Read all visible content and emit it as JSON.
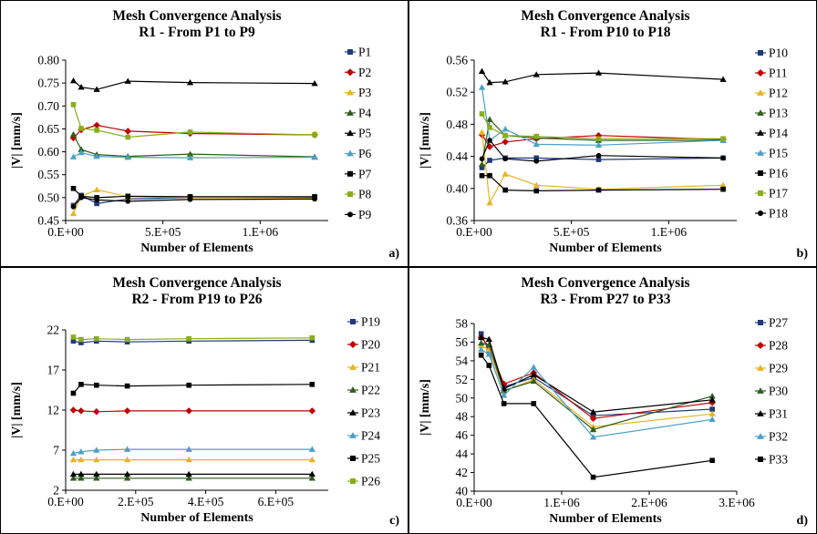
{
  "chart_data": [
    {
      "type": "line",
      "title": [
        "Mesh Convergence Analysis",
        "R1 - From P1 to P9"
      ],
      "xlabel": "Number of Elements",
      "ylabel": "|V| [mm/s]",
      "panel_label": "a)",
      "xlim": [
        0,
        1350000
      ],
      "ylim": [
        0.45,
        0.8
      ],
      "xticks": [
        0,
        500000,
        1000000
      ],
      "xtick_labels": [
        "0.E+00",
        "5.E+05",
        "1.E+06"
      ],
      "yticks": [
        0.45,
        0.5,
        0.55,
        0.6,
        0.65,
        0.7,
        0.75,
        0.8
      ],
      "ytick_labels": [
        "0.45",
        "0.50",
        "0.55",
        "0.60",
        "0.65",
        "0.70",
        "0.75",
        "0.80"
      ],
      "legend_position": "right",
      "x": [
        40000,
        80000,
        160000,
        320000,
        640000,
        1280000
      ],
      "series": [
        {
          "name": "P1",
          "color": "#1f3a78",
          "marker": "square",
          "values": [
            0.483,
            0.505,
            0.487,
            0.497,
            0.5,
            0.5
          ]
        },
        {
          "name": "P2",
          "color": "#c00000",
          "marker": "diamond",
          "values": [
            0.63,
            0.648,
            0.658,
            0.645,
            0.64,
            0.637
          ]
        },
        {
          "name": "P3",
          "color": "#e6b422",
          "marker": "triangle",
          "values": [
            0.465,
            0.503,
            0.517,
            0.502,
            0.5,
            0.499
          ]
        },
        {
          "name": "P4",
          "color": "#2e5c1e",
          "marker": "triangle",
          "values": [
            0.638,
            0.605,
            0.594,
            0.59,
            0.595,
            0.589
          ]
        },
        {
          "name": "P5",
          "color": "#000000",
          "marker": "triangle",
          "values": [
            0.755,
            0.741,
            0.736,
            0.754,
            0.751,
            0.749
          ]
        },
        {
          "name": "P6",
          "color": "#4aa0c8",
          "marker": "triangle",
          "values": [
            0.589,
            0.598,
            0.59,
            0.588,
            0.587,
            0.588
          ]
        },
        {
          "name": "P7",
          "color": "#000000",
          "marker": "square",
          "values": [
            0.52,
            0.503,
            0.5,
            0.503,
            0.502,
            0.502
          ]
        },
        {
          "name": "P8",
          "color": "#8aad1c",
          "marker": "square",
          "values": [
            0.703,
            0.651,
            0.647,
            0.632,
            0.643,
            0.637
          ]
        },
        {
          "name": "P9",
          "color": "#000000",
          "marker": "circle",
          "values": [
            0.48,
            0.5,
            0.495,
            0.492,
            0.496,
            0.497
          ]
        }
      ]
    },
    {
      "type": "line",
      "title": [
        "Mesh Convergence Analysis",
        "R1 - From P10 to P18"
      ],
      "xlabel": "Number of Elements",
      "ylabel": "|V| [mm/s]",
      "panel_label": "b)",
      "xlim": [
        0,
        1350000
      ],
      "ylim": [
        0.36,
        0.56
      ],
      "xticks": [
        0,
        500000,
        1000000
      ],
      "xtick_labels": [
        "0.E+00",
        "5.E+05",
        "1.E+06"
      ],
      "yticks": [
        0.36,
        0.4,
        0.44,
        0.48,
        0.52,
        0.56
      ],
      "ytick_labels": [
        "0.36",
        "0.40",
        "0.44",
        "0.48",
        "0.52",
        "0.56"
      ],
      "legend_position": "right",
      "x": [
        40000,
        80000,
        160000,
        320000,
        640000,
        1280000
      ],
      "series": [
        {
          "name": "P10",
          "color": "#1f3a78",
          "marker": "square",
          "values": [
            0.426,
            0.435,
            0.438,
            0.438,
            0.436,
            0.438
          ]
        },
        {
          "name": "P11",
          "color": "#c00000",
          "marker": "diamond",
          "values": [
            0.467,
            0.452,
            0.458,
            0.462,
            0.466,
            0.461
          ]
        },
        {
          "name": "P12",
          "color": "#e6b422",
          "marker": "triangle",
          "values": [
            0.47,
            0.382,
            0.418,
            0.404,
            0.399,
            0.404
          ]
        },
        {
          "name": "P13",
          "color": "#2e5c1e",
          "marker": "triangle",
          "values": [
            0.43,
            0.486,
            0.466,
            0.463,
            0.46,
            0.46
          ]
        },
        {
          "name": "P14",
          "color": "#000000",
          "marker": "triangle",
          "values": [
            0.546,
            0.532,
            0.533,
            0.542,
            0.544,
            0.536
          ]
        },
        {
          "name": "P15",
          "color": "#4aa0c8",
          "marker": "triangle",
          "values": [
            0.526,
            0.46,
            0.474,
            0.455,
            0.454,
            0.46
          ]
        },
        {
          "name": "P16",
          "color": "#000000",
          "marker": "square",
          "values": [
            0.416,
            0.416,
            0.398,
            0.397,
            0.398,
            0.399
          ]
        },
        {
          "name": "P17",
          "color": "#8aad1c",
          "marker": "square",
          "values": [
            0.493,
            0.476,
            0.466,
            0.465,
            0.462,
            0.462
          ]
        },
        {
          "name": "P18",
          "color": "#000000",
          "marker": "circle",
          "values": [
            0.437,
            0.46,
            0.437,
            0.434,
            0.441,
            0.438
          ]
        }
      ]
    },
    {
      "type": "line",
      "title": [
        "Mesh Convergence Analysis",
        "R2 - From P19 to P26"
      ],
      "xlabel": "Number of Elements",
      "ylabel": "|V| [mm/s]",
      "panel_label": "c)",
      "xlim": [
        0,
        750000
      ],
      "ylim": [
        2,
        22
      ],
      "xticks": [
        0,
        200000,
        400000,
        600000
      ],
      "xtick_labels": [
        "0.E+00",
        "2.E+05",
        "4.E+05",
        "6.E+05"
      ],
      "yticks": [
        2,
        7,
        12,
        17,
        22
      ],
      "ytick_labels": [
        "2",
        "7",
        "12",
        "17",
        "22"
      ],
      "legend_position": "right",
      "x": [
        22000,
        44000,
        88000,
        176000,
        352000,
        704000
      ],
      "series": [
        {
          "name": "P19",
          "color": "#1f3a78",
          "marker": "square",
          "values": [
            20.6,
            20.4,
            20.6,
            20.5,
            20.6,
            20.7
          ]
        },
        {
          "name": "P20",
          "color": "#c00000",
          "marker": "diamond",
          "values": [
            12.0,
            11.9,
            11.8,
            11.9,
            11.9,
            11.9
          ]
        },
        {
          "name": "P21",
          "color": "#e6b422",
          "marker": "triangle",
          "values": [
            5.8,
            5.8,
            5.8,
            5.8,
            5.8,
            5.8
          ]
        },
        {
          "name": "P22",
          "color": "#2e5c1e",
          "marker": "triangle",
          "values": [
            3.5,
            3.5,
            3.5,
            3.5,
            3.5,
            3.5
          ]
        },
        {
          "name": "P23",
          "color": "#000000",
          "marker": "triangle",
          "values": [
            4.0,
            4.0,
            4.0,
            4.0,
            4.0,
            4.0
          ]
        },
        {
          "name": "P24",
          "color": "#4aa0c8",
          "marker": "triangle",
          "values": [
            6.6,
            6.8,
            7.0,
            7.1,
            7.1,
            7.1
          ]
        },
        {
          "name": "P25",
          "color": "#000000",
          "marker": "square",
          "values": [
            14.1,
            15.2,
            15.1,
            15.0,
            15.1,
            15.2
          ]
        },
        {
          "name": "P26",
          "color": "#8aad1c",
          "marker": "square",
          "values": [
            21.1,
            20.8,
            20.9,
            20.8,
            20.9,
            21.0
          ]
        }
      ]
    },
    {
      "type": "line",
      "title": [
        "Mesh Convergence Analysis",
        "R3 - From P27 to P33"
      ],
      "xlabel": "Number of Elements",
      "ylabel": "|V| [mm/s]",
      "panel_label": "d)",
      "xlim": [
        0,
        3000000
      ],
      "ylim": [
        40,
        58
      ],
      "xticks": [
        0,
        1000000,
        2000000,
        3000000
      ],
      "xtick_labels": [
        "0.E+00",
        "1.E+06",
        "2.E+06",
        "3.E+06"
      ],
      "yticks": [
        40,
        42,
        44,
        46,
        48,
        50,
        52,
        54,
        56,
        58
      ],
      "ytick_labels": [
        "40",
        "42",
        "44",
        "46",
        "48",
        "50",
        "52",
        "54",
        "56",
        "58"
      ],
      "legend_position": "right",
      "x": [
        80000,
        170000,
        340000,
        680000,
        1360000,
        2720000
      ],
      "series": [
        {
          "name": "P27",
          "color": "#1f3a78",
          "marker": "square",
          "values": [
            56.9,
            55.0,
            51.2,
            52.2,
            48.1,
            48.8
          ]
        },
        {
          "name": "P28",
          "color": "#c00000",
          "marker": "diamond",
          "values": [
            56.5,
            55.5,
            51.5,
            52.7,
            47.8,
            49.5
          ]
        },
        {
          "name": "P29",
          "color": "#e6b422",
          "marker": "triangle",
          "values": [
            55.6,
            55.2,
            50.7,
            52.0,
            46.9,
            48.3
          ]
        },
        {
          "name": "P30",
          "color": "#2e5c1e",
          "marker": "triangle",
          "values": [
            55.9,
            55.7,
            50.8,
            51.8,
            46.6,
            50.2
          ]
        },
        {
          "name": "P31",
          "color": "#000000",
          "marker": "triangle",
          "values": [
            56.5,
            56.3,
            51.0,
            52.5,
            48.5,
            49.8
          ]
        },
        {
          "name": "P32",
          "color": "#4aa0c8",
          "marker": "triangle",
          "values": [
            55.2,
            54.7,
            50.3,
            53.3,
            45.8,
            47.7
          ]
        },
        {
          "name": "P33",
          "color": "#000000",
          "marker": "square",
          "values": [
            54.6,
            53.5,
            49.4,
            49.4,
            41.5,
            43.3
          ]
        }
      ]
    }
  ]
}
